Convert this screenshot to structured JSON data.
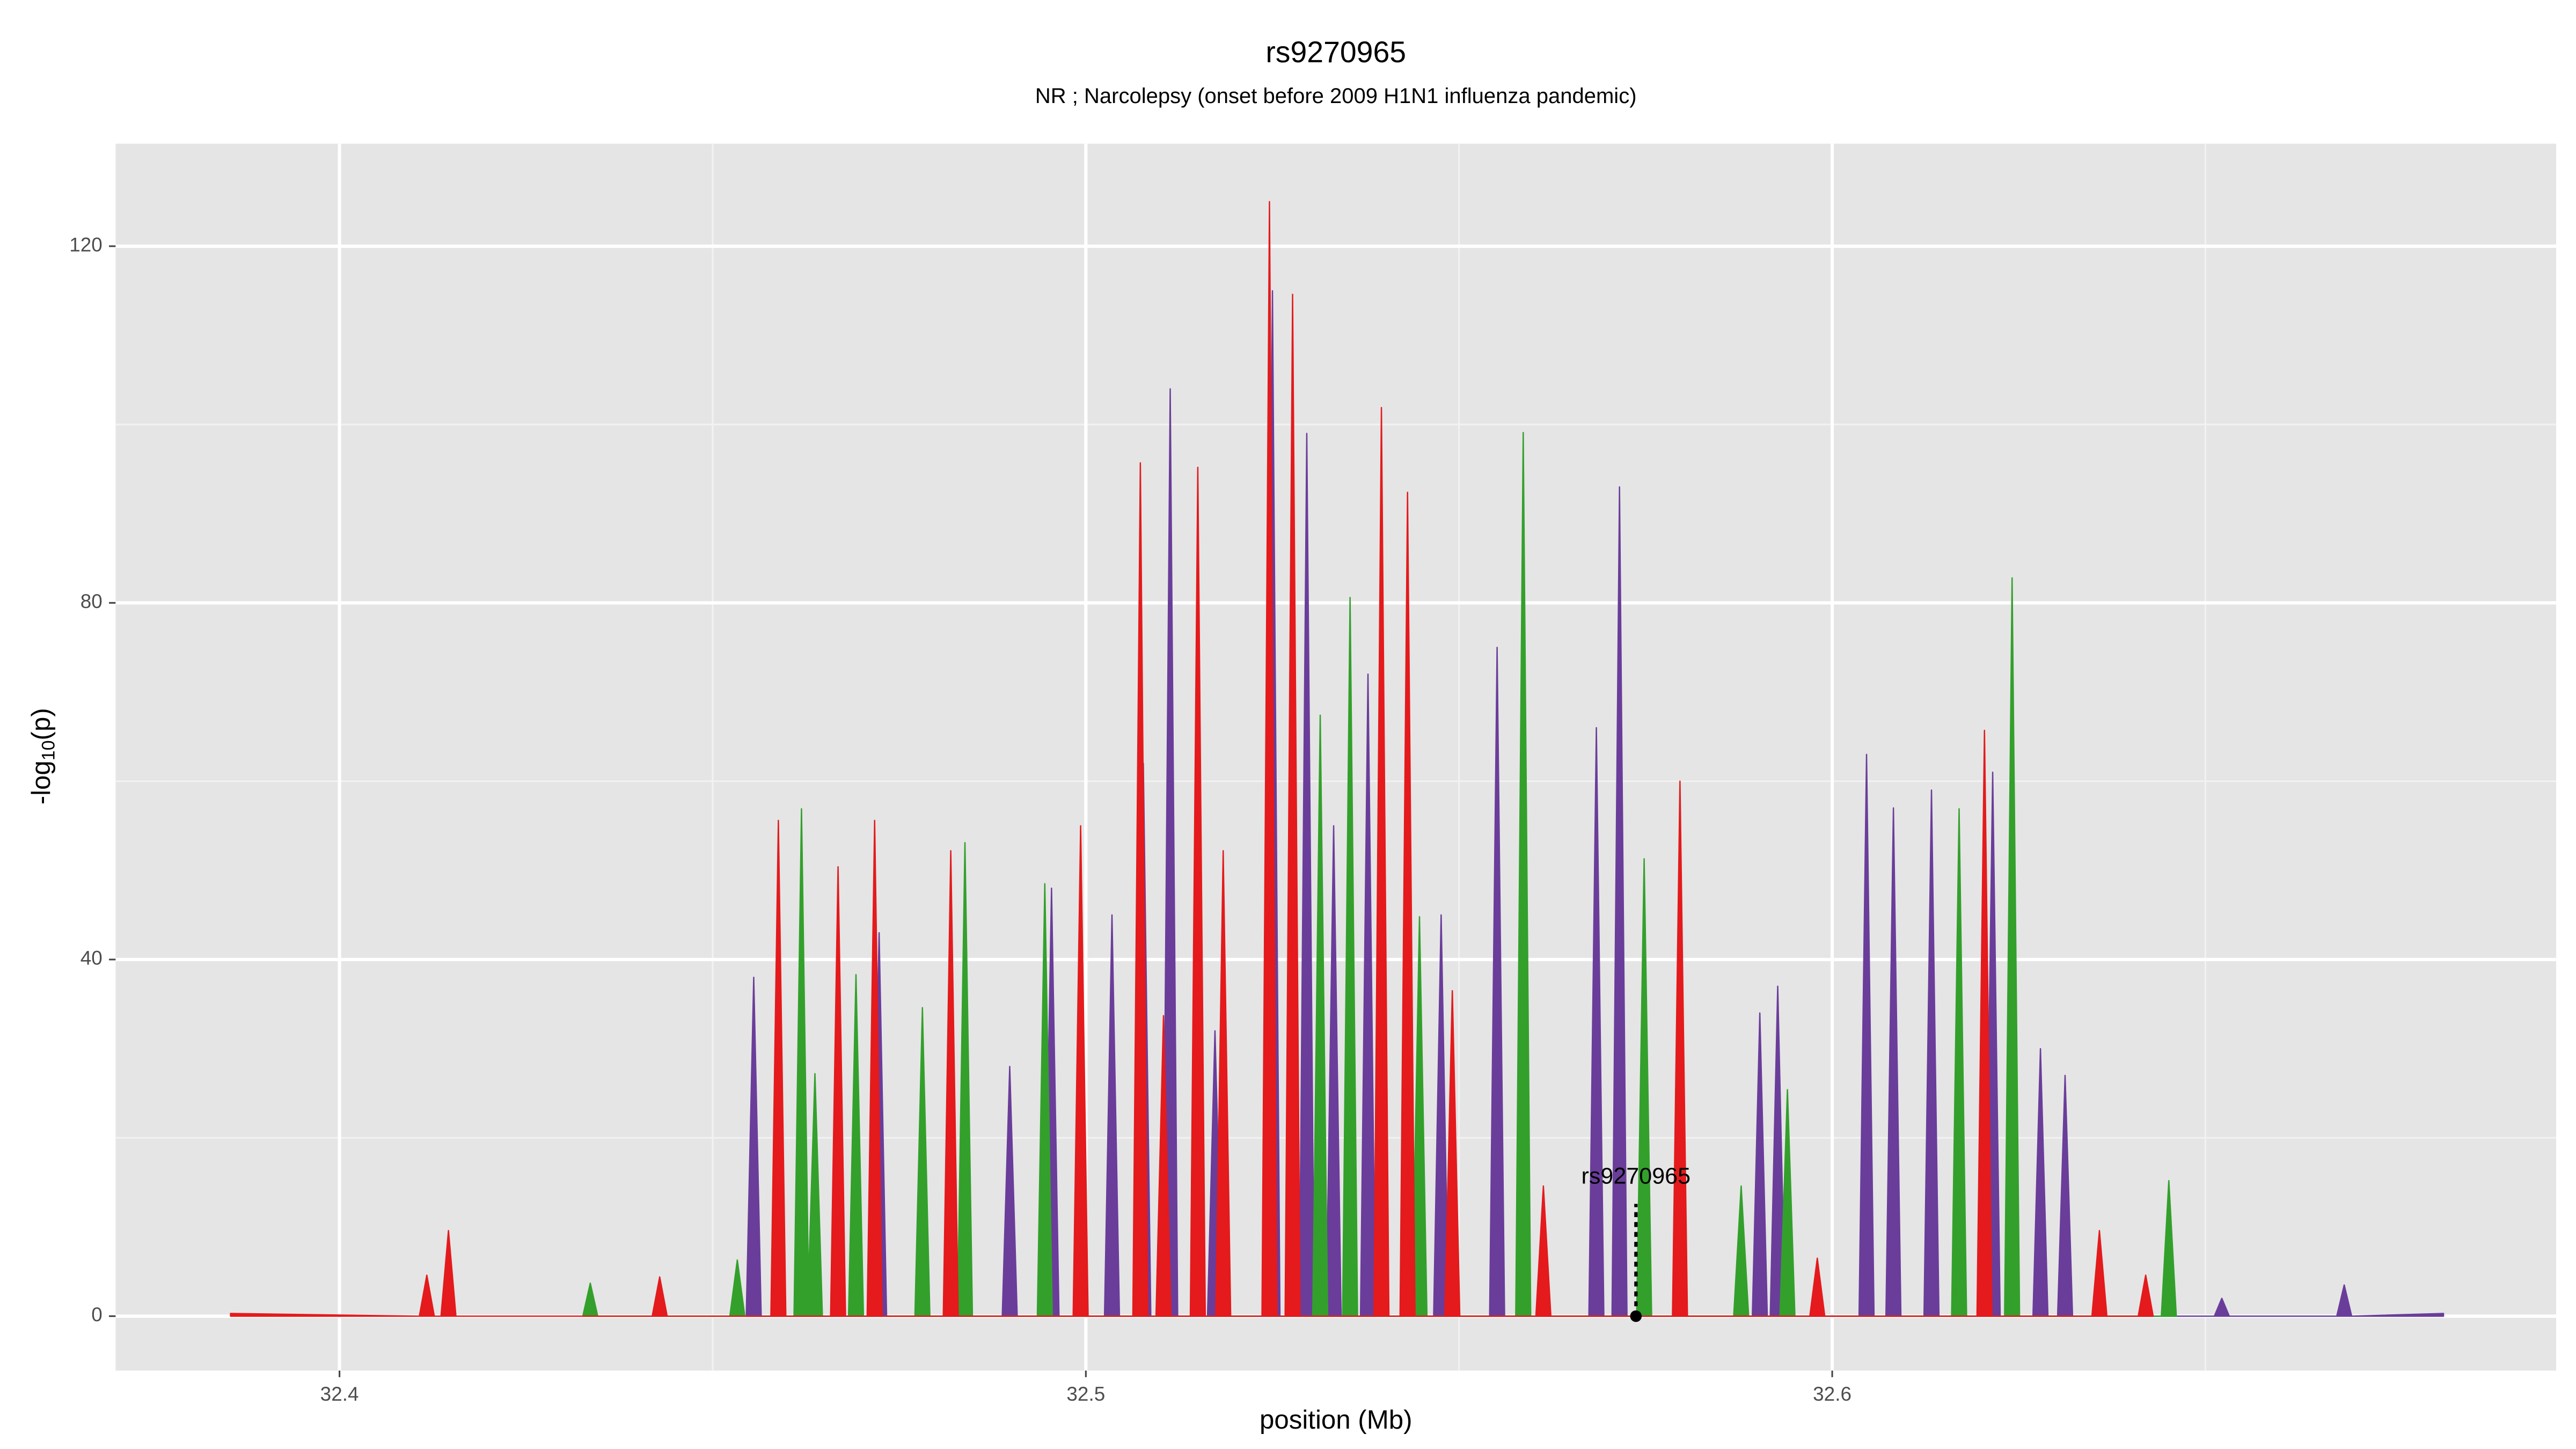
{
  "chart_data": {
    "type": "area",
    "title": "rs9270965",
    "subtitle": "NR ; Narcolepsy (onset before 2009 H1N1 influenza pandemic)",
    "x_label": "position (Mb)",
    "y_label": {
      "text": "-log",
      "sub": "10",
      "tail": "(p)"
    },
    "xlim": [
      32.37,
      32.697
    ],
    "ylim": [
      -6.1,
      131.5
    ],
    "xticks": [
      32.4,
      32.5,
      32.6
    ],
    "yticks": [
      0,
      40,
      80,
      120
    ],
    "minor_xticks": [
      32.45,
      32.55,
      32.65
    ],
    "minor_yticks": [
      20,
      60,
      100
    ],
    "grid": true,
    "annotation": {
      "text": "rs9270965",
      "x": 32.5737,
      "y": 0
    },
    "series": [
      {
        "color": "#6a3d9a",
        "x": [
          32.4545,
          32.4555,
          32.4565,
          32.4713,
          32.4723,
          32.4733,
          32.4888,
          32.4898,
          32.4908,
          32.4944,
          32.4954,
          32.4964,
          32.5025,
          32.5035,
          32.5045,
          32.5067,
          32.5077,
          32.5087,
          32.5103,
          32.5113,
          32.5123,
          32.5163,
          32.5173,
          32.5183,
          32.524,
          32.525,
          32.526,
          32.5286,
          32.5296,
          32.5306,
          32.5322,
          32.5332,
          32.5342,
          32.5368,
          32.5378,
          32.5388,
          32.5466,
          32.5476,
          32.5486,
          32.5541,
          32.5551,
          32.5561,
          32.5674,
          32.5684,
          32.5694,
          32.5705,
          32.5715,
          32.5725,
          32.5893,
          32.5903,
          32.5913,
          32.5917,
          32.5927,
          32.5937,
          32.6036,
          32.6046,
          32.6056,
          32.6072,
          32.6082,
          32.6092,
          32.6123,
          32.6133,
          32.6143,
          32.6205,
          32.6215,
          32.6225,
          32.6269,
          32.6279,
          32.6289,
          32.6302,
          32.6312,
          32.6322,
          32.6512,
          32.6522,
          32.6532,
          32.6676,
          32.6686,
          32.6696,
          32.6819
        ],
        "values": [
          0,
          38,
          0,
          0,
          43,
          0,
          0,
          28,
          0,
          0,
          48,
          0,
          0,
          45,
          0,
          0,
          62,
          0,
          0,
          104,
          0,
          0,
          32,
          0,
          0,
          115,
          0,
          0,
          99,
          0,
          0,
          55,
          0,
          0,
          72,
          0,
          0,
          45,
          0,
          0,
          75,
          0,
          0,
          66,
          0,
          0,
          93,
          0,
          0,
          34,
          0,
          0,
          37,
          0,
          0,
          63,
          0,
          0,
          57,
          0,
          0,
          59,
          0,
          0,
          61,
          0,
          0,
          30,
          0,
          0,
          27,
          0,
          0,
          2,
          0,
          0,
          3.5,
          0,
          0.3
        ]
      },
      {
        "color": "#33a02c",
        "x": [
          32.4326,
          32.4336,
          32.4346,
          32.4523,
          32.4533,
          32.4543,
          32.4609,
          32.4619,
          32.4629,
          32.4627,
          32.4637,
          32.4647,
          32.4682,
          32.4692,
          32.4702,
          32.4771,
          32.4781,
          32.4791,
          32.4828,
          32.4838,
          32.4848,
          32.4935,
          32.4945,
          32.4955,
          32.5304,
          32.5314,
          32.5324,
          32.5344,
          32.5354,
          32.5364,
          32.5437,
          32.5447,
          32.5457,
          32.5576,
          32.5586,
          32.5596,
          32.5738,
          32.5748,
          32.5758,
          32.5868,
          32.5878,
          32.5888,
          32.593,
          32.594,
          32.595,
          32.616,
          32.617,
          32.618,
          32.6231,
          32.6241,
          32.6251,
          32.6441,
          32.6451,
          32.6461
        ],
        "values": [
          0,
          3.7,
          0,
          0,
          6.3,
          0,
          0,
          56.9,
          0,
          0,
          27.2,
          0,
          0,
          38.3,
          0,
          0,
          34.6,
          0,
          0,
          53.1,
          0,
          0,
          48.5,
          0,
          0,
          67.4,
          0,
          0,
          80.6,
          0,
          0,
          44.8,
          0,
          0,
          99.1,
          0,
          0,
          51.3,
          0,
          0,
          14.6,
          0,
          0,
          25.4,
          0,
          0,
          56.9,
          0,
          0,
          82.8,
          0,
          0,
          15.2,
          0
        ]
      },
      {
        "color": "#e41a1c",
        "x": [
          32.3854,
          32.4107,
          32.4117,
          32.4127,
          32.4136,
          32.4146,
          32.4156,
          32.4419,
          32.4429,
          32.4439,
          32.4578,
          32.4588,
          32.4598,
          32.4658,
          32.4668,
          32.4678,
          32.4707,
          32.4717,
          32.4727,
          32.4809,
          32.4819,
          32.4829,
          32.4983,
          32.4993,
          32.5003,
          32.5063,
          32.5073,
          32.5083,
          32.5094,
          32.5104,
          32.5114,
          32.514,
          32.515,
          32.516,
          32.5174,
          32.5184,
          32.5194,
          32.5236,
          32.5246,
          32.5256,
          32.5267,
          32.5277,
          32.5287,
          32.5386,
          32.5396,
          32.5406,
          32.5421,
          32.5431,
          32.5441,
          32.5481,
          32.5491,
          32.5501,
          32.5603,
          32.5613,
          32.5623,
          32.5786,
          32.5796,
          32.5806,
          32.597,
          32.598,
          32.599,
          32.6194,
          32.6204,
          32.6214,
          32.6348,
          32.6358,
          32.6368,
          32.641,
          32.642,
          32.643
        ],
        "values": [
          0.3,
          0,
          4.6,
          0,
          0,
          9.6,
          0,
          0,
          4.4,
          0,
          0,
          55.6,
          0,
          0,
          50.4,
          0,
          0,
          55.6,
          0,
          0,
          52.2,
          0,
          0,
          55,
          0,
          0,
          95.7,
          0,
          0,
          33.7,
          0,
          0,
          95.2,
          0,
          0,
          52.2,
          0,
          0,
          125,
          0,
          0,
          114.6,
          0,
          0,
          101.9,
          0,
          0,
          92.4,
          0,
          0,
          36.5,
          0,
          0,
          14.6,
          0,
          0,
          60,
          0,
          0,
          6.5,
          0,
          0,
          65.7,
          0,
          0,
          9.6,
          0,
          0,
          4.6,
          0
        ]
      }
    ]
  }
}
